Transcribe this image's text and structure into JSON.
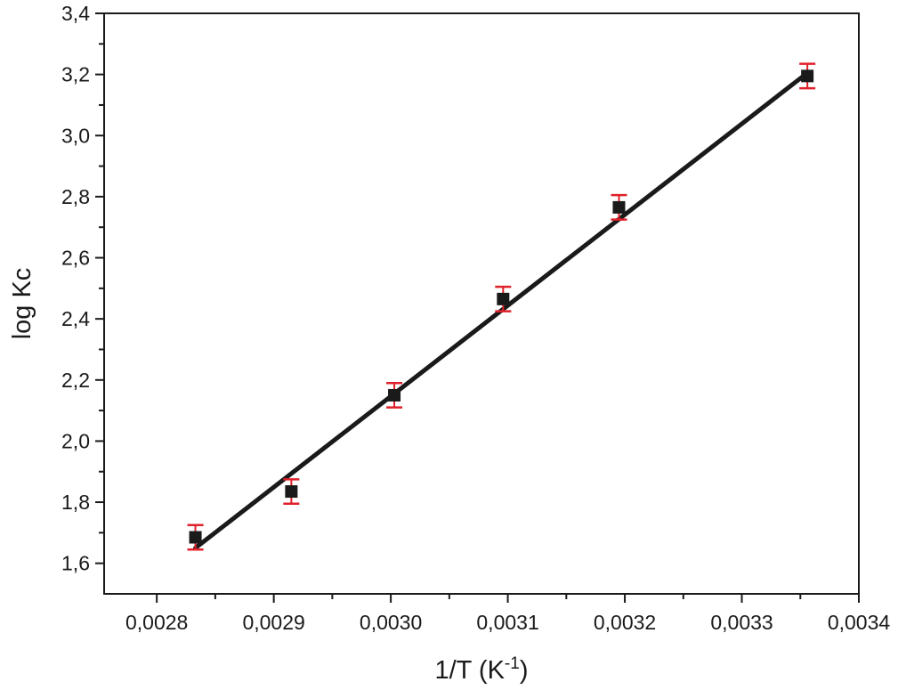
{
  "chart_data": {
    "type": "scatter",
    "title": "",
    "xlabel": "1/T (K",
    "xlabel_superscript": "-1",
    "xlabel_suffix": ")",
    "ylabel": "log Kc",
    "xlim": [
      0.002755,
      0.0034
    ],
    "ylim": [
      1.5,
      3.4
    ],
    "x_ticks": [
      "0,0028",
      "0,0029",
      "0,0030",
      "0,0031",
      "0,0032",
      "0,0033",
      "0,0034"
    ],
    "x_tick_values": [
      0.0028,
      0.0029,
      0.003,
      0.0031,
      0.0032,
      0.0033,
      0.0034
    ],
    "y_ticks": [
      "1,6",
      "1,8",
      "2,0",
      "2,2",
      "2,4",
      "2,6",
      "2,8",
      "3,0",
      "3,2",
      "3,4"
    ],
    "y_tick_values": [
      1.6,
      1.8,
      2.0,
      2.2,
      2.4,
      2.6,
      2.8,
      3.0,
      3.2,
      3.4
    ],
    "grid": false,
    "legend": false,
    "series": [
      {
        "x": [
          0.002833,
          0.002915,
          0.003003,
          0.003096,
          0.003195,
          0.003356
        ],
        "y": [
          1.685,
          1.835,
          2.15,
          2.465,
          2.765,
          3.195
        ],
        "error": [
          0.04,
          0.04,
          0.04,
          0.04,
          0.04,
          0.04
        ]
      }
    ],
    "fit_line": {
      "x": [
        0.002833,
        0.003356
      ],
      "y": [
        1.65,
        3.205
      ]
    },
    "colors": {
      "marker": "#1a1a1a",
      "error_bar": "#e0202a",
      "fit_line": "#1a1a1a",
      "axis": "#1a1a1a"
    }
  }
}
